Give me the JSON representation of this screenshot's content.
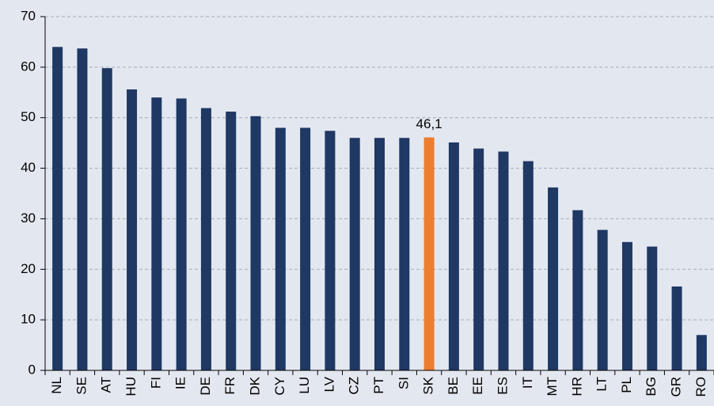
{
  "chart_data": {
    "type": "bar",
    "categories": [
      "NL",
      "SE",
      "AT",
      "HU",
      "FI",
      "IE",
      "DE",
      "FR",
      "DK",
      "CY",
      "LU",
      "LV",
      "CZ",
      "PT",
      "SI",
      "SK",
      "BE",
      "EE",
      "ES",
      "IT",
      "MT",
      "HR",
      "LT",
      "PL",
      "BG",
      "GR",
      "RO"
    ],
    "values": [
      64.0,
      63.7,
      59.8,
      55.6,
      54.0,
      53.8,
      51.9,
      51.2,
      50.3,
      48.0,
      48.0,
      47.4,
      46.0,
      46.0,
      46.0,
      46.1,
      45.1,
      43.9,
      43.3,
      41.4,
      36.2,
      31.7,
      27.8,
      25.4,
      24.5,
      16.6,
      7.0
    ],
    "value_labels": [
      null,
      null,
      null,
      null,
      null,
      null,
      null,
      null,
      null,
      null,
      null,
      null,
      null,
      null,
      null,
      "46,1",
      null,
      null,
      null,
      null,
      null,
      null,
      null,
      null,
      null,
      null,
      null
    ],
    "colors": [
      "#1f3864",
      "#1f3864",
      "#1f3864",
      "#1f3864",
      "#1f3864",
      "#1f3864",
      "#1f3864",
      "#1f3864",
      "#1f3864",
      "#1f3864",
      "#1f3864",
      "#1f3864",
      "#1f3864",
      "#1f3864",
      "#1f3864",
      "#ed7d31",
      "#1f3864",
      "#1f3864",
      "#1f3864",
      "#1f3864",
      "#1f3864",
      "#1f3864",
      "#1f3864",
      "#1f3864",
      "#1f3864",
      "#1f3864",
      "#1f3864"
    ],
    "ylim": [
      0,
      70
    ],
    "yticks": [
      0,
      10,
      20,
      30,
      40,
      50,
      60,
      70
    ],
    "grid": true
  }
}
